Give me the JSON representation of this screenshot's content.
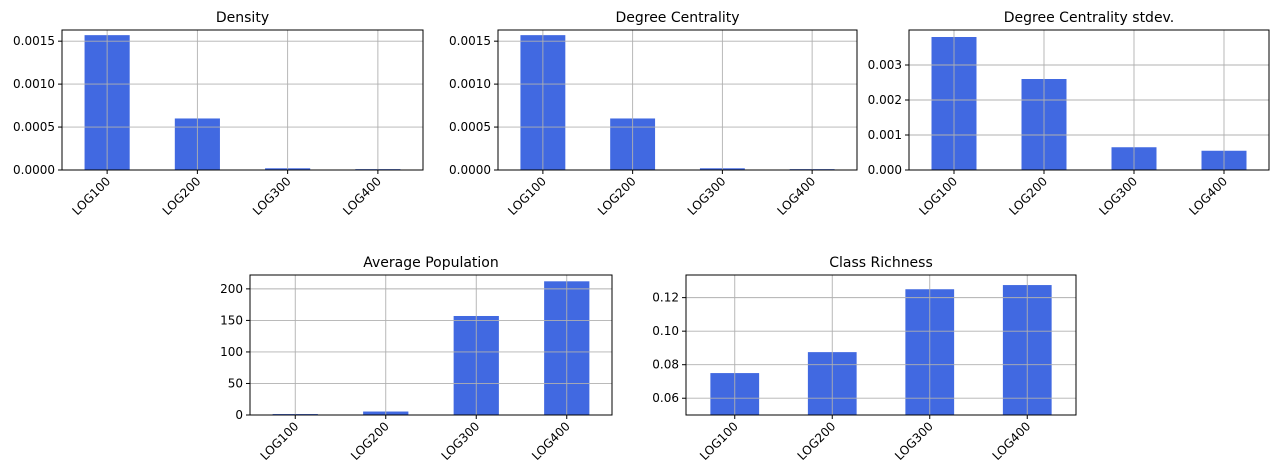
{
  "colors": {
    "bar": "#4169e1",
    "grid": "#b0b0b0",
    "axis": "#000000"
  },
  "chart_data": [
    {
      "type": "bar",
      "title": "Density",
      "categories": [
        "LOG100",
        "LOG200",
        "LOG300",
        "LOG400"
      ],
      "values": [
        0.00157,
        0.0006,
        2e-05,
        1e-05
      ],
      "ylim": [
        0,
        0.00163
      ],
      "yticks": [
        0,
        0.0005,
        0.001,
        0.0015
      ],
      "ytick_labels": [
        "0.0000",
        "0.0005",
        "0.0010",
        "0.0015"
      ],
      "grid": true
    },
    {
      "type": "bar",
      "title": "Degree Centrality",
      "categories": [
        "LOG100",
        "LOG200",
        "LOG300",
        "LOG400"
      ],
      "values": [
        0.00157,
        0.0006,
        2e-05,
        1e-05
      ],
      "ylim": [
        0,
        0.00163
      ],
      "yticks": [
        0,
        0.0005,
        0.001,
        0.0015
      ],
      "ytick_labels": [
        "0.0000",
        "0.0005",
        "0.0010",
        "0.0015"
      ],
      "grid": true
    },
    {
      "type": "bar",
      "title": "Degree Centrality stdev.",
      "categories": [
        "LOG100",
        "LOG200",
        "LOG300",
        "LOG400"
      ],
      "values": [
        0.0038,
        0.0026,
        0.00065,
        0.00055
      ],
      "ylim": [
        0,
        0.004
      ],
      "yticks": [
        0,
        0.001,
        0.002,
        0.003
      ],
      "ytick_labels": [
        "0.000",
        "0.001",
        "0.002",
        "0.003"
      ],
      "grid": true
    },
    {
      "type": "bar",
      "title": "Average Population",
      "categories": [
        "LOG100",
        "LOG200",
        "LOG300",
        "LOG400"
      ],
      "values": [
        1.5,
        5.5,
        157,
        212
      ],
      "ylim": [
        0,
        222
      ],
      "yticks": [
        0,
        50,
        100,
        150,
        200
      ],
      "ytick_labels": [
        "0",
        "50",
        "100",
        "150",
        "200"
      ],
      "grid": true
    },
    {
      "type": "bar",
      "title": "Class Richness",
      "categories": [
        "LOG100",
        "LOG200",
        "LOG300",
        "LOG400"
      ],
      "values": [
        0.075,
        0.0875,
        0.125,
        0.1275
      ],
      "ylim": [
        0.05,
        0.1335
      ],
      "yticks": [
        0.06,
        0.08,
        0.1,
        0.12
      ],
      "ytick_labels": [
        "0.06",
        "0.08",
        "0.10",
        "0.12"
      ],
      "grid": true
    }
  ]
}
